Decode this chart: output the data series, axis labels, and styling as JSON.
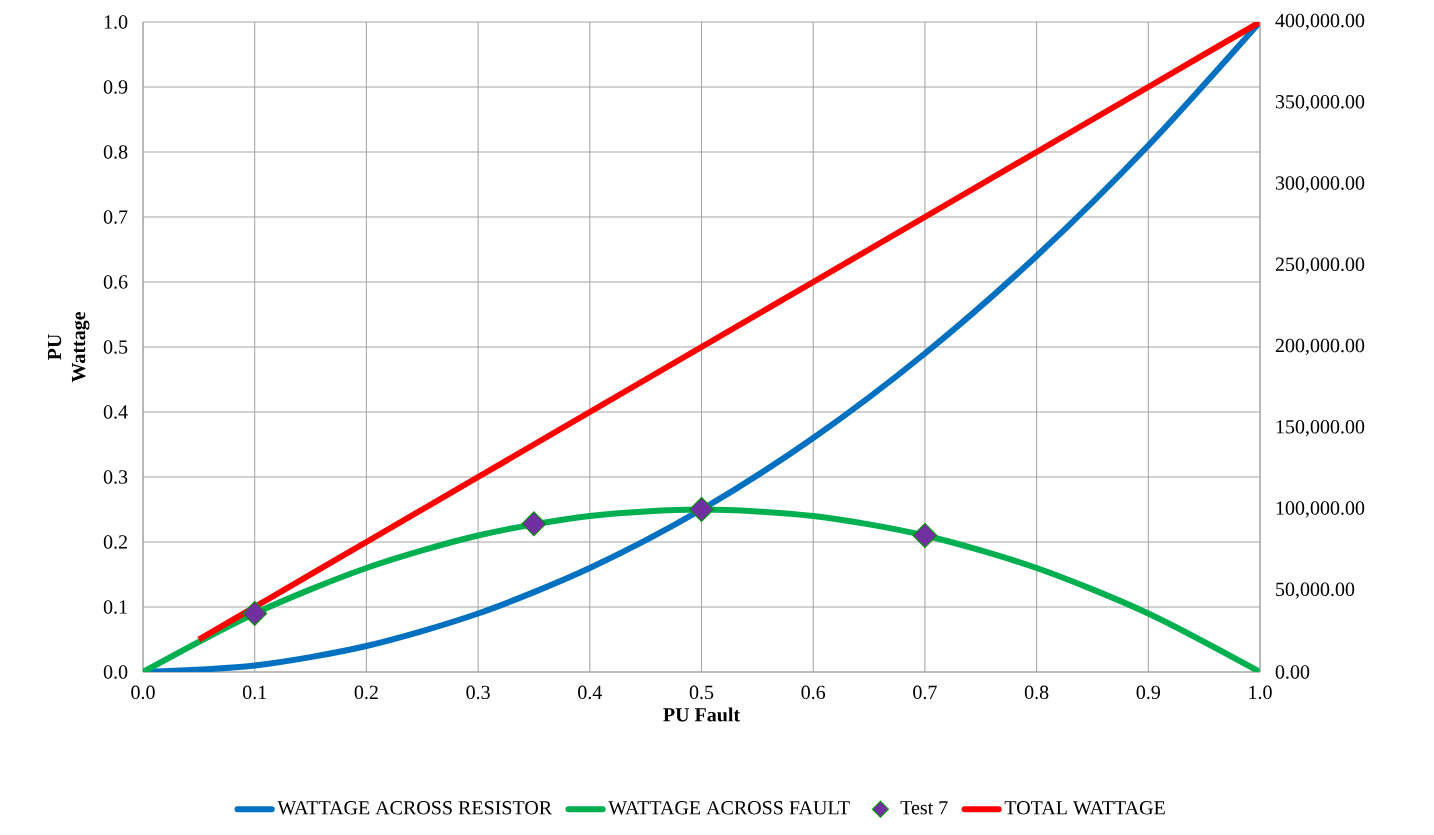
{
  "chart_data": {
    "type": "line",
    "xlabel": "PU Fault",
    "ylabel": "PU Wattage",
    "xlim": [
      0,
      1
    ],
    "ylim": [
      0,
      1
    ],
    "y2lim": [
      0,
      400000
    ],
    "xticks": [
      {
        "value": 0,
        "label": "0.0"
      },
      0.1,
      0.2,
      0.3,
      0.4,
      0.5,
      0.6,
      0.7,
      0.8,
      0.9,
      {
        "value": 1,
        "label": "1.0"
      }
    ],
    "yticks": [
      {
        "value": 0,
        "label": "0.0"
      },
      0.1,
      0.2,
      0.3,
      0.4,
      0.5,
      0.6,
      0.7,
      0.8,
      0.9,
      {
        "value": 1,
        "label": "1.0"
      }
    ],
    "y2ticks": [
      {
        "value": 0,
        "label": "0.00"
      },
      {
        "value": 50000,
        "label": "50,000.00"
      },
      {
        "value": 100000,
        "label": "100,000.00"
      },
      {
        "value": 150000,
        "label": "150,000.00"
      },
      {
        "value": 200000,
        "label": "200,000.00"
      },
      {
        "value": 250000,
        "label": "250,000.00"
      },
      {
        "value": 300000,
        "label": "300,000.00"
      },
      {
        "value": 350000,
        "label": "350,000.00"
      },
      {
        "value": 400000,
        "label": "400,000.00"
      }
    ],
    "grid": true,
    "legend": "bottom",
    "line_style": "solid",
    "series": [
      {
        "name": "WATTAGE ACROSS RESISTOR",
        "color": "#0070c0",
        "x": [
          0,
          0.1,
          0.2,
          0.3,
          0.4,
          0.5,
          0.6,
          0.7,
          0.8,
          0.9,
          1
        ],
        "values": [
          0,
          0.01,
          0.04,
          0.09,
          0.16,
          0.25,
          0.36,
          0.49,
          0.64,
          0.81,
          1
        ]
      },
      {
        "name": "WATTAGE ACROSS FAULT",
        "color": "#00b050",
        "x": [
          0,
          0.1,
          0.2,
          0.3,
          0.4,
          0.5,
          0.6,
          0.7,
          0.8,
          0.9,
          1
        ],
        "values": [
          0,
          0.09,
          0.16,
          0.21,
          0.24,
          0.25,
          0.24,
          0.21,
          0.16,
          0.09,
          0
        ]
      },
      {
        "name": "Test 7",
        "type": "scatter",
        "marker": "diamond",
        "color": "#7030a0",
        "x": [
          0.1,
          0.35,
          0.5,
          0.7
        ],
        "values": [
          0.09,
          0.228,
          0.25,
          0.21
        ]
      },
      {
        "name": "TOTAL WATTAGE",
        "color": "#ff0000",
        "x": [
          0.05,
          0.1,
          0.2,
          0.3,
          0.4,
          0.5,
          0.6,
          0.7,
          0.8,
          0.9,
          1
        ],
        "values": [
          0.05,
          0.1,
          0.2,
          0.3,
          0.4,
          0.5,
          0.6,
          0.7,
          0.8,
          0.9,
          1
        ]
      }
    ]
  }
}
